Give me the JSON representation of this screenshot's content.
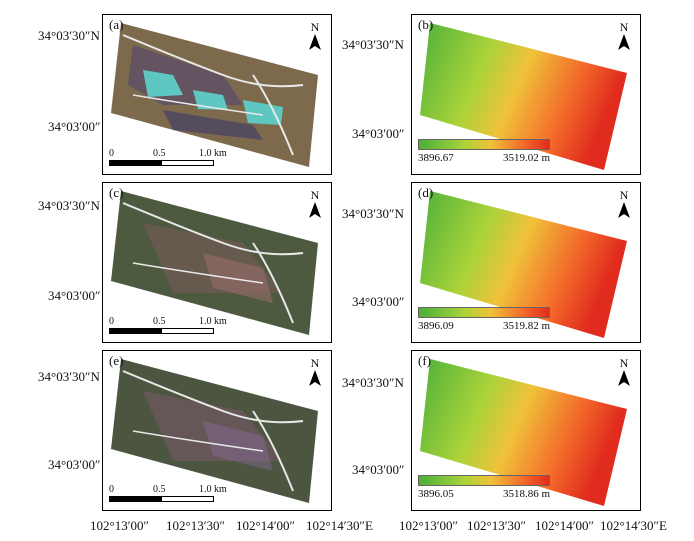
{
  "lat_labels": {
    "top": "34°03′30″N",
    "bottom": "34°03′00″"
  },
  "lon_labels": [
    "102°13′00″",
    "102°13′30″",
    "102°14′00″",
    "102°14′30″E"
  ],
  "north": "N",
  "scalebar": {
    "t0": "0",
    "t1": "0.5",
    "t2": "1.0 km"
  },
  "panels": {
    "a": {
      "label": "(a)"
    },
    "b": {
      "label": "(b)",
      "legend_min": "3896.67",
      "legend_max": "3519.02 m"
    },
    "c": {
      "label": "(c)"
    },
    "d": {
      "label": "(d)",
      "legend_min": "3896.09",
      "legend_max": "3519.82 m"
    },
    "e": {
      "label": "(e)"
    },
    "f": {
      "label": "(f)",
      "legend_min": "3896.05",
      "legend_max": "3518.86 m"
    }
  },
  "colors": {
    "elev_low": "#4caf3a",
    "elev_mid": "#f0c23a",
    "elev_high": "#e02b1e",
    "imagery_a": "#7a6a50",
    "imagery_ce": "#4e5a40",
    "ponds": "#5fc7c2"
  }
}
